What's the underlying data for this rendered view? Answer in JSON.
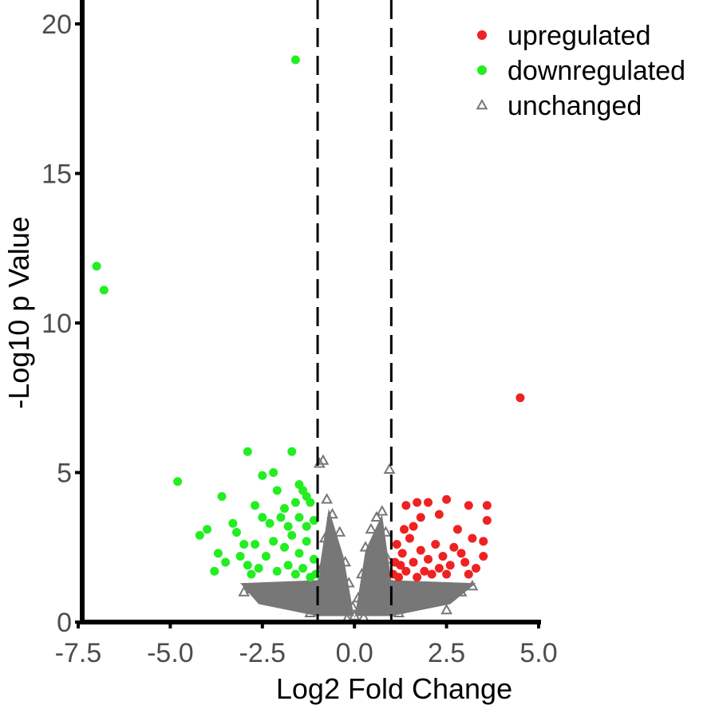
{
  "chart_data": {
    "type": "scatter",
    "title": "",
    "xlabel": "Log2 Fold Change",
    "ylabel": "-Log10 p Value",
    "xlim": [
      -7.5,
      5.0
    ],
    "ylim": [
      0,
      20
    ],
    "x_ticks": [
      "-7.5",
      "-5.0",
      "-2.5",
      "0.0",
      "2.5",
      "5.0"
    ],
    "y_ticks": [
      "0",
      "5",
      "10",
      "15",
      "20"
    ],
    "thresholds": {
      "log2fc": [
        -1,
        1
      ],
      "style": "dashed"
    },
    "grid": false,
    "legend_position": "top-right",
    "series": [
      {
        "name": "upregulated",
        "marker": "circle",
        "color": "#ee2222",
        "points": [
          [
            4.5,
            7.5
          ],
          [
            3.6,
            3.9
          ],
          [
            2.5,
            4.1
          ],
          [
            3.1,
            3.9
          ],
          [
            2.0,
            4.0
          ],
          [
            1.7,
            4.0
          ],
          [
            1.4,
            3.9
          ],
          [
            3.6,
            3.4
          ],
          [
            2.3,
            3.6
          ],
          [
            1.8,
            3.5
          ],
          [
            2.8,
            3.1
          ],
          [
            3.2,
            2.8
          ],
          [
            3.5,
            2.7
          ],
          [
            3.5,
            2.2
          ],
          [
            3.3,
            1.8
          ],
          [
            3.1,
            1.6
          ],
          [
            3.0,
            2.0
          ],
          [
            2.9,
            2.3
          ],
          [
            2.7,
            2.5
          ],
          [
            2.6,
            1.9
          ],
          [
            2.5,
            1.6
          ],
          [
            2.4,
            2.2
          ],
          [
            2.3,
            1.8
          ],
          [
            2.2,
            2.6
          ],
          [
            2.1,
            1.6
          ],
          [
            2.0,
            2.1
          ],
          [
            1.9,
            1.7
          ],
          [
            1.8,
            2.4
          ],
          [
            1.7,
            1.5
          ],
          [
            1.6,
            2.0
          ],
          [
            1.5,
            2.8
          ],
          [
            1.4,
            1.7
          ],
          [
            1.3,
            2.3
          ],
          [
            1.2,
            1.5
          ],
          [
            1.1,
            2.0
          ],
          [
            1.05,
            1.6
          ],
          [
            1.15,
            2.6
          ],
          [
            1.35,
            3.1
          ],
          [
            1.6,
            3.2
          ],
          [
            1.25,
            1.9
          ]
        ]
      },
      {
        "name": "downregulated",
        "marker": "circle",
        "color": "#22ee22",
        "points": [
          [
            -1.6,
            18.8
          ],
          [
            -7.0,
            11.9
          ],
          [
            -6.8,
            11.1
          ],
          [
            -4.8,
            4.7
          ],
          [
            -2.9,
            5.7
          ],
          [
            -1.7,
            5.7
          ],
          [
            -2.2,
            5.0
          ],
          [
            -2.5,
            4.9
          ],
          [
            -3.6,
            4.2
          ],
          [
            -2.1,
            4.4
          ],
          [
            -1.5,
            4.6
          ],
          [
            -1.4,
            4.4
          ],
          [
            -1.3,
            4.2
          ],
          [
            -2.7,
            3.9
          ],
          [
            -1.9,
            3.8
          ],
          [
            -1.6,
            4.0
          ],
          [
            -1.2,
            4.0
          ],
          [
            -4.0,
            3.1
          ],
          [
            -4.2,
            2.9
          ],
          [
            -3.3,
            3.3
          ],
          [
            -3.2,
            3.0
          ],
          [
            -2.5,
            3.5
          ],
          [
            -2.3,
            3.3
          ],
          [
            -2.0,
            3.5
          ],
          [
            -1.8,
            3.2
          ],
          [
            -1.5,
            3.5
          ],
          [
            -1.3,
            3.2
          ],
          [
            -1.1,
            3.4
          ],
          [
            -3.7,
            2.3
          ],
          [
            -3.5,
            2.0
          ],
          [
            -3.8,
            1.7
          ],
          [
            -3.1,
            2.2
          ],
          [
            -2.9,
            1.9
          ],
          [
            -2.7,
            2.6
          ],
          [
            -2.6,
            1.8
          ],
          [
            -2.4,
            2.2
          ],
          [
            -2.2,
            2.7
          ],
          [
            -2.1,
            1.7
          ],
          [
            -1.9,
            2.5
          ],
          [
            -1.8,
            1.9
          ],
          [
            -1.7,
            2.9
          ],
          [
            -1.6,
            1.6
          ],
          [
            -1.5,
            2.3
          ],
          [
            -1.4,
            1.8
          ],
          [
            -1.3,
            2.7
          ],
          [
            -1.2,
            1.5
          ],
          [
            -1.1,
            2.1
          ],
          [
            -1.05,
            1.6
          ],
          [
            -2.8,
            1.6
          ],
          [
            -3.0,
            2.6
          ]
        ]
      },
      {
        "name": "unchanged",
        "marker": "triangle-open",
        "color": "#777777",
        "points": [
          [
            -0.95,
            5.3
          ],
          [
            -0.85,
            5.4
          ],
          [
            0.95,
            5.1
          ],
          [
            -0.75,
            4.1
          ],
          [
            -0.6,
            3.6
          ],
          [
            0.75,
            3.7
          ],
          [
            0.6,
            3.5
          ],
          [
            -0.4,
            3.0
          ],
          [
            0.45,
            3.1
          ],
          [
            -0.25,
            2.0
          ],
          [
            0.3,
            2.5
          ],
          [
            0.2,
            1.6
          ],
          [
            -0.15,
            1.3
          ],
          [
            0.1,
            0.8
          ],
          [
            -0.05,
            0.5
          ],
          [
            0.0,
            0.2
          ],
          [
            -0.5,
            2.4
          ],
          [
            0.55,
            2.7
          ],
          [
            -0.8,
            2.8
          ],
          [
            0.85,
            3.0
          ],
          [
            -0.9,
            1.8
          ],
          [
            0.9,
            2.1
          ],
          [
            -0.65,
            1.1
          ],
          [
            0.7,
            1.4
          ],
          [
            -0.35,
            0.7
          ],
          [
            0.4,
            0.9
          ],
          [
            -1.9,
            1.0
          ],
          [
            -2.8,
            1.1
          ],
          [
            -2.2,
            0.7
          ],
          [
            -1.5,
            0.5
          ],
          [
            2.0,
            0.9
          ],
          [
            2.9,
            1.0
          ],
          [
            3.2,
            1.2
          ],
          [
            1.5,
            0.6
          ],
          [
            2.5,
            0.4
          ],
          [
            -3.0,
            1.0
          ],
          [
            -1.2,
            0.3
          ],
          [
            1.2,
            0.3
          ],
          [
            -0.2,
            0.1
          ],
          [
            0.25,
            0.15
          ]
        ]
      }
    ]
  }
}
